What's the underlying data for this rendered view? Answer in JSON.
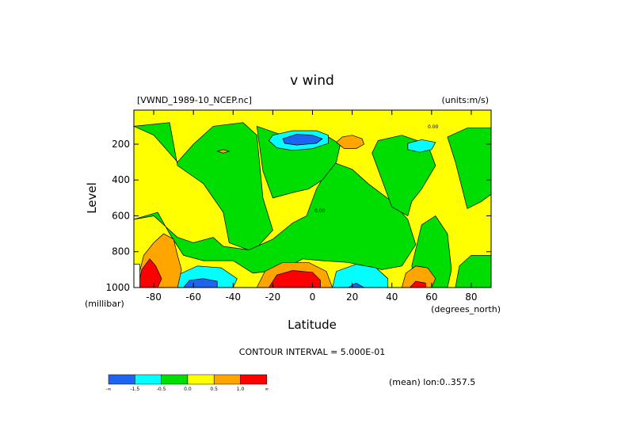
{
  "chart_data": {
    "type": "heatmap",
    "title": "v wind",
    "dataset_label": "[VWND_1989-10_NCEP.nc]",
    "units_label": "(units:m/s)",
    "xlabel": "Latitude",
    "xunits": "(degrees_north)",
    "ylabel": "Level",
    "yunits": "(millibar)",
    "xlim": [
      -90,
      90
    ],
    "ylim": [
      1000,
      10
    ],
    "x_ticks": [
      -80,
      -60,
      -40,
      -20,
      0,
      20,
      40,
      60,
      80
    ],
    "x_tick_labels": [
      "-80",
      "-60",
      "-40",
      "-20",
      "0",
      "20",
      "40",
      "60",
      "80"
    ],
    "y_ticks": [
      200,
      400,
      600,
      800,
      1000
    ],
    "y_tick_labels": [
      "200",
      "400",
      "600",
      "800",
      "1000"
    ],
    "contour_interval_label": "CONTOUR INTERVAL = 5.000E-01",
    "mean_label": "(mean) lon:0..357.5",
    "contour_line_labels": [
      "0.00"
    ],
    "colorbar": {
      "colors": [
        "#1e64f0",
        "#00ffff",
        "#00dd00",
        "#ffff00",
        "#ffa500",
        "#ff0000"
      ],
      "labels": [
        "-∞",
        "-1.5",
        "-0.5",
        "0.0",
        "0.5",
        "1.0",
        "∞"
      ]
    },
    "regions": [
      {
        "level": "green",
        "color": "#00dd00",
        "points": [
          [
            -90,
            100
          ],
          [
            -72,
            80
          ],
          [
            -68,
            320
          ],
          [
            -55,
            420
          ],
          [
            -45,
            580
          ],
          [
            -42,
            750
          ],
          [
            -30,
            800
          ],
          [
            -20,
            680
          ],
          [
            -25,
            500
          ],
          [
            -28,
            150
          ],
          [
            -35,
            80
          ],
          [
            -50,
            100
          ],
          [
            -60,
            200
          ],
          [
            -68,
            300
          ],
          [
            -80,
            150
          ]
        ]
      },
      {
        "level": "green",
        "color": "#00dd00",
        "points": [
          [
            -90,
            620
          ],
          [
            -78,
            580
          ],
          [
            -72,
            700
          ],
          [
            -65,
            820
          ],
          [
            -55,
            850
          ],
          [
            -40,
            850
          ],
          [
            -30,
            920
          ],
          [
            -15,
            900
          ],
          [
            -5,
            840
          ],
          [
            5,
            850
          ],
          [
            18,
            860
          ],
          [
            35,
            900
          ],
          [
            45,
            880
          ],
          [
            52,
            760
          ],
          [
            48,
            620
          ],
          [
            40,
            520
          ],
          [
            28,
            420
          ],
          [
            20,
            340
          ],
          [
            10,
            300
          ],
          [
            2,
            450
          ],
          [
            -3,
            600
          ],
          [
            -10,
            640
          ],
          [
            -20,
            730
          ],
          [
            -32,
            790
          ],
          [
            -45,
            770
          ],
          [
            -50,
            720
          ],
          [
            -60,
            750
          ],
          [
            -68,
            720
          ],
          [
            -80,
            600
          ]
        ]
      },
      {
        "level": "green",
        "color": "#00dd00",
        "points": [
          [
            -28,
            100
          ],
          [
            -15,
            150
          ],
          [
            -5,
            160
          ],
          [
            8,
            160
          ],
          [
            14,
            200
          ],
          [
            12,
            300
          ],
          [
            5,
            400
          ],
          [
            -2,
            450
          ],
          [
            -10,
            470
          ],
          [
            -20,
            500
          ],
          [
            -25,
            350
          ]
        ]
      },
      {
        "level": "green",
        "color": "#00dd00",
        "points": [
          [
            33,
            180
          ],
          [
            45,
            150
          ],
          [
            58,
            200
          ],
          [
            62,
            320
          ],
          [
            55,
            450
          ],
          [
            50,
            520
          ],
          [
            48,
            600
          ],
          [
            40,
            550
          ],
          [
            35,
            400
          ],
          [
            30,
            250
          ]
        ]
      },
      {
        "level": "green",
        "color": "#00dd00",
        "points": [
          [
            68,
            160
          ],
          [
            78,
            110
          ],
          [
            90,
            110
          ],
          [
            90,
            480
          ],
          [
            85,
            520
          ],
          [
            78,
            560
          ],
          [
            75,
            430
          ],
          [
            72,
            300
          ]
        ]
      },
      {
        "level": "green",
        "color": "#00dd00",
        "points": [
          [
            50,
            880
          ],
          [
            55,
            650
          ],
          [
            62,
            600
          ],
          [
            68,
            700
          ],
          [
            70,
            900
          ],
          [
            68,
            1000
          ],
          [
            52,
            1000
          ]
        ]
      },
      {
        "level": "green",
        "color": "#00dd00",
        "points": [
          [
            74,
            880
          ],
          [
            80,
            820
          ],
          [
            90,
            820
          ],
          [
            90,
            1000
          ],
          [
            72,
            1000
          ]
        ]
      },
      {
        "level": "cyan",
        "color": "#00ffff",
        "points": [
          [
            -20,
            150
          ],
          [
            -10,
            125
          ],
          [
            2,
            125
          ],
          [
            8,
            150
          ],
          [
            8,
            195
          ],
          [
            0,
            225
          ],
          [
            -10,
            235
          ],
          [
            -18,
            220
          ],
          [
            -22,
            180
          ]
        ]
      },
      {
        "level": "cyan",
        "color": "#00ffff",
        "points": [
          [
            48,
            195
          ],
          [
            55,
            175
          ],
          [
            62,
            190
          ],
          [
            60,
            230
          ],
          [
            54,
            245
          ],
          [
            48,
            230
          ]
        ]
      },
      {
        "level": "cyan",
        "color": "#00ffff",
        "points": [
          [
            -70,
            1000
          ],
          [
            -68,
            930
          ],
          [
            -58,
            880
          ],
          [
            -46,
            890
          ],
          [
            -38,
            950
          ],
          [
            -40,
            1000
          ]
        ]
      },
      {
        "level": "cyan",
        "color": "#00ffff",
        "points": [
          [
            10,
            1000
          ],
          [
            12,
            910
          ],
          [
            22,
            870
          ],
          [
            32,
            890
          ],
          [
            38,
            950
          ],
          [
            38,
            1000
          ]
        ]
      },
      {
        "level": "blue",
        "color": "#1e64f0",
        "points": [
          [
            -15,
            170
          ],
          [
            -8,
            145
          ],
          [
            0,
            150
          ],
          [
            5,
            170
          ],
          [
            2,
            195
          ],
          [
            -8,
            205
          ],
          [
            -14,
            195
          ]
        ]
      },
      {
        "level": "blue",
        "color": "#1e64f0",
        "points": [
          [
            -65,
            1000
          ],
          [
            -62,
            960
          ],
          [
            -55,
            950
          ],
          [
            -48,
            965
          ],
          [
            -48,
            1000
          ]
        ]
      },
      {
        "level": "blue",
        "color": "#1e64f0",
        "points": [
          [
            18,
            1000
          ],
          [
            22,
            975
          ],
          [
            26,
            1000
          ]
        ]
      },
      {
        "level": "orange",
        "color": "#ffa500",
        "points": [
          [
            -28,
            1000
          ],
          [
            -24,
            910
          ],
          [
            -15,
            860
          ],
          [
            -2,
            860
          ],
          [
            7,
            910
          ],
          [
            10,
            1000
          ]
        ]
      },
      {
        "level": "orange",
        "color": "#ffa500",
        "points": [
          [
            -92,
            1000
          ],
          [
            -88,
            950
          ],
          [
            -85,
            820
          ],
          [
            -80,
            750
          ],
          [
            -75,
            700
          ],
          [
            -70,
            730
          ],
          [
            -68,
            820
          ],
          [
            -66,
            900
          ],
          [
            -68,
            1000
          ]
        ]
      },
      {
        "level": "orange",
        "color": "#ffa500",
        "points": [
          [
            45,
            1000
          ],
          [
            47,
            920
          ],
          [
            52,
            880
          ],
          [
            58,
            890
          ],
          [
            62,
            950
          ],
          [
            60,
            1000
          ]
        ]
      },
      {
        "level": "orange",
        "color": "#ffa500",
        "points": [
          [
            12,
            190
          ],
          [
            15,
            160
          ],
          [
            20,
            150
          ],
          [
            25,
            170
          ],
          [
            26,
            200
          ],
          [
            22,
            225
          ],
          [
            16,
            225
          ]
        ]
      },
      {
        "level": "orange",
        "color": "#ffa500",
        "points": [
          [
            -48,
            240
          ],
          [
            -45,
            230
          ],
          [
            -42,
            240
          ],
          [
            -45,
            250
          ]
        ]
      },
      {
        "level": "red",
        "color": "#ff0000",
        "points": [
          [
            -22,
            1000
          ],
          [
            -18,
            930
          ],
          [
            -10,
            905
          ],
          [
            0,
            915
          ],
          [
            4,
            960
          ],
          [
            4,
            1000
          ]
        ]
      },
      {
        "level": "red",
        "color": "#ff0000",
        "points": [
          [
            -88,
            1000
          ],
          [
            -86,
            900
          ],
          [
            -82,
            840
          ],
          [
            -79,
            880
          ],
          [
            -76,
            950
          ],
          [
            -78,
            1000
          ]
        ]
      },
      {
        "level": "red",
        "color": "#ff0000",
        "points": [
          [
            49,
            1000
          ],
          [
            52,
            965
          ],
          [
            57,
            975
          ],
          [
            57,
            1000
          ]
        ]
      },
      {
        "level": "white",
        "color": "#ffffff",
        "points": [
          [
            -90,
            870
          ],
          [
            -87,
            870
          ],
          [
            -87,
            1000
          ],
          [
            -90,
            1000
          ]
        ]
      }
    ]
  }
}
